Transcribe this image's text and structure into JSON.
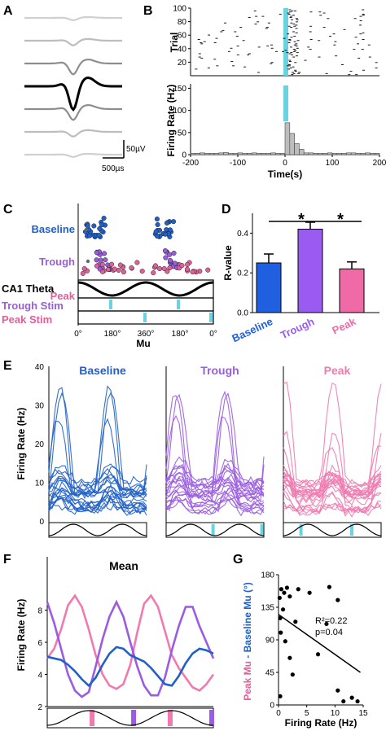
{
  "panels": {
    "A": {
      "label": "A",
      "scale_voltage": "50µV",
      "scale_time": "500µs",
      "waveform_grays": [
        "#d0d0d0",
        "#bdbdbd",
        "#8e8e8e",
        "#000000",
        "#8e8e8e",
        "#bdbdbd",
        "#d0d0d0"
      ]
    },
    "B": {
      "label": "B",
      "raster_ylabel": "Trial",
      "raster_yticks": [
        "100",
        "80",
        "60",
        "40",
        "20"
      ],
      "hist_ylabel": "Firing Rate (Hz)",
      "hist_yticks": [
        "150",
        "100",
        "50",
        "0"
      ],
      "xticks": [
        "-200",
        "-100",
        "0",
        "100",
        "200"
      ],
      "xlabel": "Time(s)",
      "stim_color": "#69d3e0",
      "chart_data": {
        "type": "bar",
        "x": [
          -195,
          -185,
          -175,
          -165,
          -155,
          -145,
          -135,
          -125,
          -115,
          -105,
          -95,
          -85,
          -75,
          -65,
          -55,
          -45,
          -35,
          -25,
          -15,
          -5,
          5,
          15,
          25,
          35,
          45,
          55,
          65,
          75,
          85,
          95,
          105,
          115,
          125,
          135,
          145,
          155,
          165,
          175,
          185,
          195
        ],
        "values": [
          3,
          3,
          4,
          3,
          3,
          3,
          4,
          5,
          3,
          3,
          4,
          3,
          3,
          4,
          3,
          3,
          3,
          4,
          3,
          3,
          72,
          48,
          25,
          12,
          4,
          4,
          3,
          3,
          3,
          4,
          3,
          3,
          3,
          4,
          4,
          3,
          3,
          4,
          3,
          3
        ],
        "xlim": [
          -200,
          200
        ],
        "ylim": [
          0,
          160
        ]
      }
    },
    "C": {
      "label": "C",
      "row_labels": [
        "Baseline",
        "Trough",
        "Peak"
      ],
      "colors": {
        "baseline": "#2060c8",
        "trough": "#9a5ce0",
        "peak": "#e0609a",
        "stim": "#69d3e0"
      },
      "trace_labels": [
        "CA1 Theta",
        "Trough Stim",
        "Peak Stim"
      ],
      "xticks": [
        "0°",
        "180°",
        "360°",
        "180°",
        "0°"
      ],
      "xlabel": "Mu"
    },
    "D": {
      "label": "D",
      "ylabel": "R-value",
      "yticks": [
        "0.4",
        "0.2",
        "0.0"
      ],
      "sig_marks": [
        "*",
        "*"
      ],
      "chart_data": {
        "type": "bar",
        "categories": [
          "Baseline",
          "Trough",
          "Peak"
        ],
        "values": [
          0.25,
          0.42,
          0.22
        ],
        "errors": [
          0.045,
          0.035,
          0.035
        ],
        "ylim": [
          0,
          0.5
        ],
        "colors": [
          "#1f5fe0",
          "#9a5cf0",
          "#f06aa8"
        ]
      }
    },
    "E": {
      "label": "E",
      "ylabel": "Firing Rate (Hz)",
      "yticks": [
        "40",
        "30",
        "20",
        "10",
        "0"
      ],
      "titles": [
        "Baseline",
        "Trough",
        "Peak"
      ],
      "colors": [
        "#2060c8",
        "#9a5ce0",
        "#f07ab0"
      ],
      "ylim": [
        0,
        40
      ]
    },
    "F": {
      "label": "F",
      "title": "Mean",
      "ylabel": "Firing Rate (Hz)",
      "yticks": [
        "8",
        "6",
        "4",
        "2"
      ],
      "chart_data": {
        "type": "line",
        "x_phase_deg": [
          0,
          30,
          60,
          90,
          120,
          150,
          180,
          210,
          240,
          270,
          300,
          330,
          360,
          390,
          420,
          450,
          480,
          510,
          540,
          570,
          600,
          630,
          660,
          690,
          720
        ],
        "ylim": [
          2,
          10
        ],
        "series": [
          {
            "color": "#2060c8",
            "values": [
              5.1,
              5.0,
              4.9,
              4.6,
              4.2,
              3.7,
              3.3,
              3.8,
              4.6,
              5.3,
              5.7,
              5.6,
              5.2,
              5.0,
              4.8,
              4.4,
              3.9,
              3.4,
              3.3,
              3.9,
              4.7,
              5.3,
              5.6,
              5.5,
              5.3
            ]
          },
          {
            "color": "#9a5ce0",
            "values": [
              8.5,
              7.2,
              5.6,
              4.0,
              3.0,
              2.6,
              2.9,
              4.5,
              6.2,
              7.6,
              8.5,
              7.6,
              6.0,
              4.5,
              3.3,
              2.7,
              2.7,
              3.8,
              5.5,
              7.0,
              8.2,
              8.2,
              7.0,
              6.0,
              5.0
            ]
          },
          {
            "color": "#f07ab0",
            "values": [
              5.0,
              5.6,
              6.8,
              8.3,
              8.9,
              8.2,
              6.8,
              5.2,
              4.0,
              3.3,
              3.1,
              3.4,
              4.6,
              6.6,
              8.4,
              8.9,
              8.2,
              6.7,
              5.2,
              4.4,
              3.8,
              3.2,
              3.0,
              3.4,
              4.0
            ]
          }
        ]
      }
    },
    "G": {
      "label": "G",
      "ylabel_peak": "Peak Mu",
      "ylabel_rest": " - Baseline Mu (°)",
      "yticks": [
        "180",
        "135",
        "90",
        "45",
        "0"
      ],
      "xticks": [
        "0",
        "5",
        "10",
        "15"
      ],
      "xlabel": "Firing Rate (Hz)",
      "annotation_r2": "R²=0.22",
      "annotation_p": "p=0.04",
      "chart_data": {
        "type": "scatter",
        "points": [
          [
            0.2,
            148
          ],
          [
            0.5,
            160
          ],
          [
            1.0,
            155
          ],
          [
            1.5,
            162
          ],
          [
            2.0,
            150
          ],
          [
            3.5,
            160
          ],
          [
            5.5,
            155
          ],
          [
            9.0,
            163
          ],
          [
            10.5,
            145
          ],
          [
            0.3,
            120
          ],
          [
            0.4,
            100
          ],
          [
            0.8,
            132
          ],
          [
            1.2,
            88
          ],
          [
            2.0,
            65
          ],
          [
            3.0,
            115
          ],
          [
            7.0,
            70
          ],
          [
            8.5,
            112
          ],
          [
            13.0,
            10
          ],
          [
            14.0,
            5
          ],
          [
            0.3,
            12
          ],
          [
            2.5,
            42
          ],
          [
            10.5,
            20
          ],
          [
            11.5,
            5
          ]
        ],
        "fit": [
          [
            0,
            125
          ],
          [
            14.5,
            45
          ]
        ],
        "xlim": [
          0,
          15
        ],
        "ylim": [
          0,
          180
        ]
      }
    }
  }
}
